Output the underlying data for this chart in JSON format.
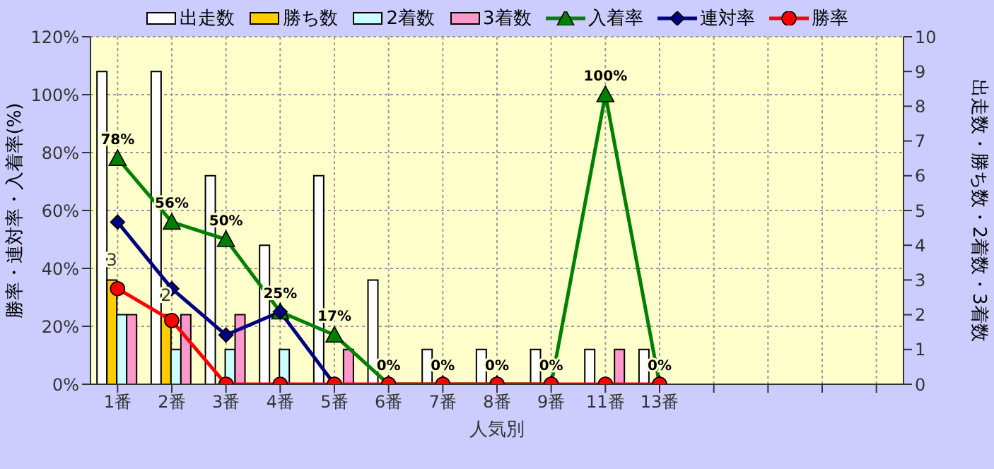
{
  "chart_data": {
    "type": "bar",
    "xlabel": "人気別",
    "ylabel": "勝率・連対率・入着率(%)",
    "y2label": "出走数・勝ち数・2着数・3着数",
    "categories": [
      "1番",
      "2番",
      "3番",
      "4番",
      "5番",
      "6番",
      "7番",
      "8番",
      "9番",
      "11番",
      "13番",
      null,
      null,
      null,
      null
    ],
    "series": [
      {
        "name": "出走数",
        "axis": "y2",
        "color": "#ffffff",
        "values": [
          9,
          9,
          6,
          4,
          6,
          3,
          1,
          1,
          1,
          1,
          1,
          null,
          null,
          null,
          null
        ]
      },
      {
        "name": "勝ち数",
        "axis": "y2",
        "color": "#ffcc00",
        "values": [
          3,
          2,
          0,
          0,
          0,
          0,
          0,
          0,
          0,
          0,
          0,
          null,
          null,
          null,
          null
        ],
        "value_labels": [
          "3",
          "2",
          null,
          null,
          null,
          null,
          null,
          null,
          null,
          null,
          null,
          null,
          null,
          null,
          null
        ]
      },
      {
        "name": "2着数",
        "axis": "y2",
        "color": "#ccffff",
        "values": [
          2,
          1,
          1,
          1,
          0,
          0,
          0,
          0,
          0,
          0,
          0,
          null,
          null,
          null,
          null
        ]
      },
      {
        "name": "3着数",
        "axis": "y2",
        "color": "#ff99cc",
        "values": [
          2,
          2,
          2,
          0,
          1,
          0,
          0,
          0,
          0,
          1,
          0,
          null,
          null,
          null,
          null
        ]
      },
      {
        "name": "入着率",
        "type": "line",
        "color": "#008000",
        "marker": "triangle",
        "values": [
          78,
          56,
          50,
          25,
          17,
          0,
          0,
          0,
          0,
          100,
          0,
          null,
          null,
          null,
          null
        ],
        "value_labels": [
          "78%",
          "56%",
          "50%",
          "25%",
          "17%",
          "0%",
          "0%",
          "0%",
          "0%",
          "100%",
          "0%",
          null,
          null,
          null,
          null
        ]
      },
      {
        "name": "連対率",
        "type": "line",
        "color": "#000080",
        "marker": "diamond",
        "values": [
          56,
          33,
          17,
          25,
          0,
          null,
          null,
          null,
          null,
          null,
          null,
          null,
          null,
          null,
          null
        ]
      },
      {
        "name": "勝率",
        "type": "line",
        "color": "#ff0000",
        "marker": "circle",
        "values": [
          33,
          22,
          0,
          0,
          0,
          0,
          0,
          0,
          0,
          0,
          0,
          null,
          null,
          null,
          null
        ]
      }
    ],
    "ylim": [
      0,
      120
    ],
    "yticks": [
      {
        "value": 0,
        "label": "0%"
      },
      {
        "value": 20,
        "label": "20%"
      },
      {
        "value": 40,
        "label": "40%"
      },
      {
        "value": 60,
        "label": "60%"
      },
      {
        "value": 80,
        "label": "80%"
      },
      {
        "value": 100,
        "label": "100%"
      },
      {
        "value": 120,
        "label": "120%"
      }
    ],
    "y2lim": [
      0,
      10
    ],
    "y2ticks": [
      0,
      1,
      2,
      3,
      4,
      5,
      6,
      7,
      8,
      9,
      10
    ],
    "grid": true,
    "legend": "top"
  }
}
